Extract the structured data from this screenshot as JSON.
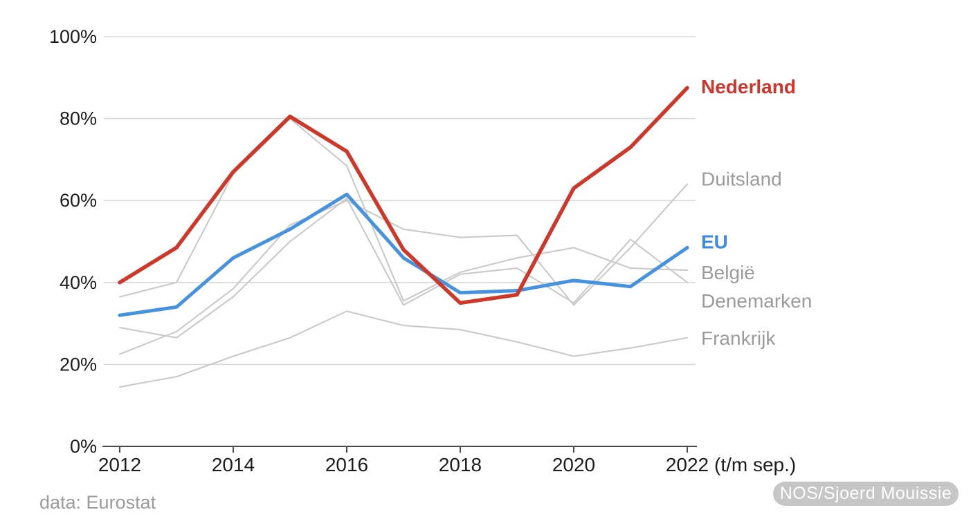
{
  "chart_data": {
    "type": "line",
    "title": "",
    "x_years": [
      2012,
      2013,
      2014,
      2015,
      2016,
      2017,
      2018,
      2019,
      2020,
      2021,
      2022
    ],
    "x_axis": {
      "tick_years": [
        2012,
        2014,
        2016,
        2018,
        2020,
        2022
      ],
      "suffix": "(t/m sep.)"
    },
    "y_axis": {
      "ticks": [
        {
          "label": "0%",
          "value": 0
        },
        {
          "label": "20%",
          "value": 20
        },
        {
          "label": "40%",
          "value": 40
        },
        {
          "label": "60%",
          "value": 60
        },
        {
          "label": "80%",
          "value": 80
        },
        {
          "label": "100%",
          "value": 100
        }
      ],
      "range": [
        0,
        100
      ]
    },
    "grid": true,
    "legend_position": "right-end-labels",
    "series": [
      {
        "name": "Frankrijk",
        "line_color": "#cbcbcb",
        "label_color": "#9b9b9b",
        "bold": false,
        "line_width": 2.2,
        "values": [
          14.5,
          17,
          22,
          26.5,
          33,
          29.5,
          28.5,
          25.5,
          22,
          24,
          26.5
        ]
      },
      {
        "name": "Denemarken",
        "line_color": "#cbcbcb",
        "label_color": "#9b9b9b",
        "bold": false,
        "line_width": 2.2,
        "values": [
          29,
          26.5,
          36.5,
          50,
          60.5,
          34.5,
          42,
          43.5,
          35,
          50.5,
          40
        ]
      },
      {
        "name": "België",
        "line_color": "#cbcbcb",
        "label_color": "#9b9b9b",
        "bold": false,
        "line_width": 2.2,
        "values": [
          36.5,
          40,
          66.5,
          80,
          68.5,
          35.5,
          42.5,
          46,
          48.5,
          43.5,
          43
        ]
      },
      {
        "name": "Duitsland",
        "line_color": "#cbcbcb",
        "label_color": "#9b9b9b",
        "bold": false,
        "line_width": 2.2,
        "values": [
          22.5,
          28,
          38.5,
          54,
          60,
          53,
          51,
          51.5,
          34.5,
          48.5,
          64
        ]
      },
      {
        "name": "EU",
        "line_color": "#4593e0",
        "label_color": "#3c8de0",
        "bold": true,
        "line_width": 5,
        "values": [
          32,
          34,
          46,
          53,
          61.5,
          46,
          37.5,
          38,
          40.5,
          39,
          48.5
        ]
      },
      {
        "name": "Nederland",
        "line_color": "#cf3729",
        "label_color": "#d0342a",
        "bold": true,
        "line_width": 5.5,
        "values": [
          40,
          48.5,
          67,
          80.5,
          72,
          48,
          35,
          37,
          63,
          73,
          87.5
        ]
      }
    ]
  },
  "footer": {
    "source": "data: Eurostat",
    "credit": "NOS/Sjoerd Mouissie"
  }
}
